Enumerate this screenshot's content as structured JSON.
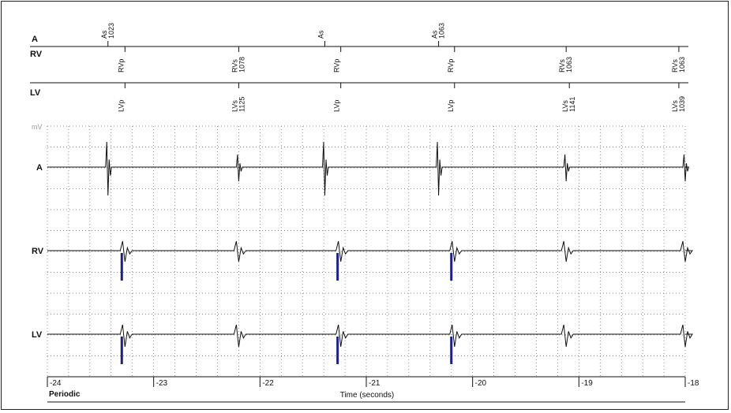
{
  "chart_data": {
    "type": "line",
    "xlabel": "Time (seconds)",
    "x_ticks": [
      -24,
      -23,
      -22,
      -21,
      -20,
      -19,
      -18
    ],
    "xlim": [
      -24,
      -18
    ],
    "y_unit_label": "mV",
    "footer_label": "Periodic",
    "marker_channels": [
      {
        "name": "A",
        "events": [
          {
            "t": -23.43,
            "label": "As",
            "interval": "1023"
          },
          {
            "t": -21.39,
            "label": "As",
            "interval": ""
          },
          {
            "t": -20.32,
            "label": "As",
            "interval": "1063"
          }
        ]
      },
      {
        "name": "RV",
        "events": [
          {
            "t": -23.27,
            "label": "RVp",
            "interval": ""
          },
          {
            "t": -22.2,
            "label": "RVs",
            "interval": "1078"
          },
          {
            "t": -21.24,
            "label": "RVp",
            "interval": ""
          },
          {
            "t": -20.17,
            "label": "RVp",
            "interval": ""
          },
          {
            "t": -19.12,
            "label": "RVs",
            "interval": "1063"
          },
          {
            "t": -18.06,
            "label": "RVs",
            "interval": "1063"
          }
        ]
      },
      {
        "name": "LV",
        "events": [
          {
            "t": -23.27,
            "label": "LVp",
            "interval": ""
          },
          {
            "t": -22.2,
            "label": "LVs",
            "interval": "1125"
          },
          {
            "t": -21.24,
            "label": "LVp",
            "interval": ""
          },
          {
            "t": -20.17,
            "label": "LVp",
            "interval": ""
          },
          {
            "t": -19.09,
            "label": "LVs",
            "interval": "1141"
          },
          {
            "t": -18.06,
            "label": "LVs",
            "interval": "1039"
          }
        ]
      }
    ],
    "egm_channels": [
      {
        "name": "A",
        "spike_times": [
          -23.43,
          -22.2,
          -21.39,
          -20.32,
          -19.12,
          -18.0
        ]
      },
      {
        "name": "RV",
        "spike_times": [
          -23.27,
          -22.2,
          -21.24,
          -20.17,
          -19.12,
          -18.0
        ],
        "pace_times": [
          -23.3,
          -21.27,
          -20.2
        ]
      },
      {
        "name": "LV",
        "spike_times": [
          -23.27,
          -22.2,
          -21.24,
          -20.17,
          -19.12,
          -18.0
        ],
        "pace_times": [
          -23.3,
          -21.27,
          -20.2
        ]
      }
    ],
    "grid": true,
    "pace_marker_color": "#1a1f8c"
  }
}
